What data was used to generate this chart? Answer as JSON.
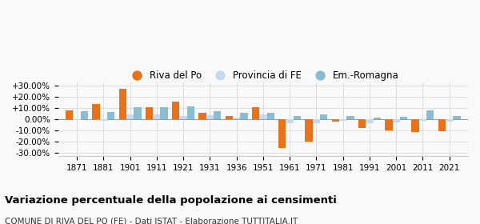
{
  "years": [
    1871,
    1881,
    1901,
    1911,
    1921,
    1931,
    1936,
    1951,
    1961,
    1971,
    1981,
    1991,
    2001,
    2011,
    2021
  ],
  "riva": [
    8.0,
    13.5,
    27.5,
    10.5,
    15.5,
    5.5,
    2.5,
    11.0,
    -26.0,
    -20.5,
    -2.5,
    -8.0,
    -10.0,
    -11.5,
    -11.0
  ],
  "provincia": [
    -1.0,
    -1.5,
    4.0,
    4.0,
    3.0,
    3.5,
    1.5,
    4.0,
    -3.5,
    -3.5,
    -1.5,
    -3.5,
    -3.0,
    -1.5,
    -2.5
  ],
  "emromagna": [
    7.0,
    6.5,
    11.0,
    10.5,
    11.5,
    7.0,
    5.5,
    6.0,
    3.0,
    4.5,
    2.5,
    1.5,
    2.0,
    8.0,
    3.0
  ],
  "color_riva": "#e8711a",
  "color_provincia": "#c5d9f1",
  "color_emromagna": "#89bdd3",
  "title": "Variazione percentuale della popolazione ai censimenti",
  "subtitle": "COMUNE DI RIVA DEL PO (FE) - Dati ISTAT - Elaborazione TUTTITALIA.IT",
  "yticks": [
    -30,
    -20,
    -10,
    0,
    10,
    20,
    30
  ],
  "ytick_labels": [
    "-30.00%",
    "-20.00%",
    "-10.00%",
    "0.00%",
    "+10.00%",
    "+20.00%",
    "+30.00%"
  ],
  "legend_labels": [
    "Riva del Po",
    "Provincia di FE",
    "Em.-Romagna"
  ],
  "bg_color": "#f9f9f9",
  "grid_color": "#dddddd"
}
